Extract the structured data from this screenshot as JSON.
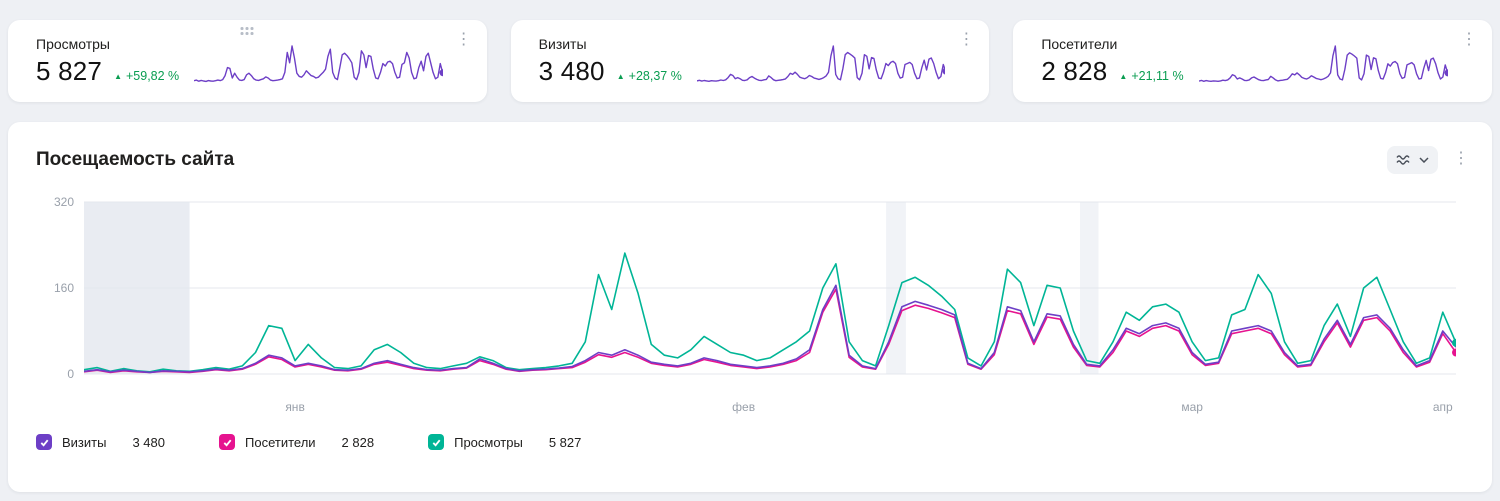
{
  "colors": {
    "sparkline": "#6d3fc6",
    "positive": "#0a9d51",
    "grid": "#e4e7ed"
  },
  "cards": [
    {
      "title": "Просмотры",
      "value": "5 827",
      "delta": "+59,82 %",
      "series_ref": "pageviews"
    },
    {
      "title": "Визиты",
      "value": "3 480",
      "delta": "+28,37 %",
      "series_ref": "visits"
    },
    {
      "title": "Посетители",
      "value": "2 828",
      "delta": "+21,11 %",
      "series_ref": "visitors"
    }
  ],
  "main_chart": {
    "title": "Посещаемость сайта"
  },
  "chart_data": {
    "type": "line",
    "title": "Посещаемость сайта",
    "ylim": [
      0,
      320
    ],
    "yticks": [
      0,
      160,
      320
    ],
    "xticks": [
      {
        "label": "янв",
        "idx": 16
      },
      {
        "label": "фев",
        "idx": 50
      },
      {
        "label": "мар",
        "idx": 84
      },
      {
        "label": "апр",
        "idx": 103
      }
    ],
    "bands": [
      {
        "from": 0,
        "to": 8,
        "color": "#e9ecf2"
      },
      {
        "from": 60.8,
        "to": 62.3,
        "color": "#f1f3f7"
      },
      {
        "from": 75.5,
        "to": 76.9,
        "color": "#f1f3f7"
      }
    ],
    "draw_order": [
      "pageviews",
      "visitors",
      "visits"
    ],
    "series": [
      {
        "key": "pageviews",
        "name": "Просмотры",
        "color": "#00b596",
        "total": "5 827",
        "end_dot": true,
        "values": [
          8,
          12,
          5,
          10,
          6,
          4,
          9,
          6,
          5,
          8,
          12,
          9,
          15,
          40,
          90,
          85,
          25,
          55,
          30,
          12,
          10,
          15,
          45,
          55,
          40,
          20,
          12,
          10,
          15,
          20,
          32,
          25,
          12,
          8,
          10,
          12,
          15,
          20,
          60,
          185,
          120,
          225,
          150,
          55,
          35,
          30,
          45,
          70,
          55,
          40,
          35,
          25,
          30,
          45,
          60,
          80,
          160,
          205,
          60,
          25,
          15,
          90,
          170,
          180,
          165,
          145,
          120,
          30,
          15,
          60,
          195,
          170,
          90,
          165,
          160,
          80,
          25,
          20,
          60,
          115,
          100,
          125,
          130,
          115,
          60,
          25,
          30,
          110,
          120,
          185,
          150,
          60,
          20,
          25,
          90,
          130,
          70,
          160,
          180,
          120,
          60,
          20,
          30,
          115,
          58
        ]
      },
      {
        "key": "visitors",
        "name": "Посетители",
        "color": "#e6138f",
        "total": "2 828",
        "end_dot": true,
        "values": [
          4,
          7,
          3,
          6,
          4,
          3,
          5,
          4,
          3,
          5,
          8,
          6,
          9,
          18,
          32,
          27,
          13,
          18,
          13,
          7,
          6,
          9,
          18,
          22,
          16,
          10,
          7,
          6,
          9,
          11,
          25,
          18,
          9,
          5,
          7,
          8,
          10,
          12,
          22,
          36,
          31,
          40,
          31,
          20,
          16,
          13,
          18,
          27,
          22,
          16,
          13,
          10,
          13,
          18,
          25,
          40,
          115,
          158,
          31,
          13,
          9,
          55,
          118,
          128,
          122,
          114,
          105,
          18,
          9,
          36,
          118,
          112,
          55,
          106,
          102,
          50,
          16,
          13,
          40,
          80,
          70,
          85,
          90,
          80,
          36,
          16,
          20,
          75,
          80,
          85,
          75,
          36,
          13,
          16,
          60,
          95,
          50,
          100,
          105,
          80,
          40,
          13,
          22,
          75,
          40
        ]
      },
      {
        "key": "visits",
        "name": "Визиты",
        "color": "#6d3fc6",
        "total": "3 480",
        "end_dot": false,
        "values": [
          5,
          8,
          4,
          7,
          5,
          3,
          6,
          5,
          4,
          6,
          9,
          7,
          10,
          20,
          35,
          30,
          15,
          20,
          15,
          8,
          7,
          10,
          20,
          25,
          18,
          12,
          8,
          7,
          10,
          12,
          28,
          20,
          10,
          6,
          8,
          9,
          11,
          14,
          25,
          40,
          35,
          45,
          35,
          22,
          18,
          15,
          20,
          30,
          25,
          18,
          15,
          12,
          15,
          20,
          28,
          45,
          120,
          165,
          35,
          15,
          10,
          60,
          125,
          135,
          128,
          120,
          110,
          20,
          10,
          40,
          125,
          118,
          60,
          112,
          108,
          55,
          18,
          15,
          45,
          85,
          75,
          90,
          95,
          85,
          40,
          18,
          22,
          80,
          85,
          90,
          80,
          40,
          15,
          18,
          65,
          100,
          55,
          105,
          110,
          85,
          45,
          15,
          25,
          80,
          50
        ]
      }
    ]
  },
  "legend": {
    "items": [
      {
        "label": "Визиты",
        "value": "3 480",
        "color": "#6d3fc6"
      },
      {
        "label": "Посетители",
        "value": "2 828",
        "color": "#e6138f"
      },
      {
        "label": "Просмотры",
        "value": "5 827",
        "color": "#00b596"
      }
    ]
  },
  "icons": {
    "kebab": "⋮",
    "triangle_up": "▲"
  }
}
